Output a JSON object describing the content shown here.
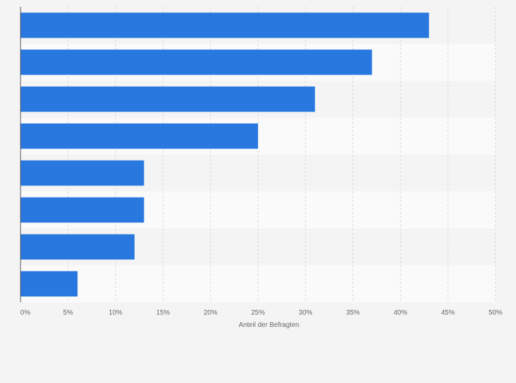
{
  "colors": {
    "bar": "#2878e0",
    "band_odd": "#f4f4f4",
    "band_even": "#fafafa",
    "grid": "#d6d6d6",
    "axis": "#555555",
    "page_bg": "#f4f4f4"
  },
  "chart_data": {
    "type": "bar",
    "orientation": "horizontal",
    "categories": [
      "",
      "",
      "",
      "",
      "",
      "",
      "",
      ""
    ],
    "values": [
      43,
      37,
      31,
      25,
      13,
      13,
      12,
      6
    ],
    "xlabel": "Anteil der Befragten",
    "ylabel": "",
    "xlim": [
      0,
      50
    ],
    "x_ticks": [
      0,
      5,
      10,
      15,
      20,
      25,
      30,
      35,
      40,
      45,
      50
    ],
    "x_tick_labels": [
      "0%",
      "5%",
      "10%",
      "15%",
      "20%",
      "25%",
      "30%",
      "35%",
      "40%",
      "45%",
      "50%"
    ],
    "grid": true,
    "legend": "none"
  }
}
